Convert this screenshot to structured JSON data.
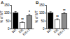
{
  "chart_data": [
    {
      "type": "bar",
      "title": "A",
      "y_label": "% of WT",
      "categories": [
        "WT",
        "E/E",
        "E/E+T"
      ],
      "values": [
        100,
        38,
        82
      ],
      "errors": [
        8,
        6,
        9
      ],
      "colors": [
        "#000000",
        "#ffffff",
        "#8c8c8c"
      ],
      "ylim": [
        0,
        150
      ],
      "yticks": [
        0,
        50,
        100,
        150
      ],
      "annotations": [
        "**",
        "*"
      ]
    },
    {
      "type": "bar",
      "title": "B",
      "y_label": "% of WT",
      "categories": [
        "WT",
        "E/E",
        "E/E+T"
      ],
      "values": [
        100,
        55,
        95
      ],
      "errors": [
        7,
        7,
        8
      ],
      "colors": [
        "#000000",
        "#ffffff",
        "#8c8c8c"
      ],
      "ylim": [
        0,
        150
      ],
      "yticks": [
        0,
        50,
        100,
        150
      ],
      "annotations": [
        "**",
        "**"
      ]
    }
  ]
}
